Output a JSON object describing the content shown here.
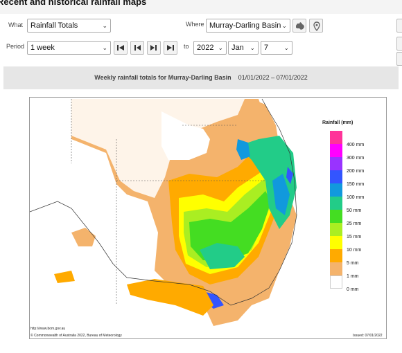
{
  "page_title": "Recent and historical rainfall maps",
  "controls": {
    "what_label": "What",
    "what_value": "Rainfall Totals",
    "where_label": "Where",
    "where_value": "Murray-Darling Basin",
    "period_label": "Period",
    "period_value": "1 week",
    "to_label": "to",
    "year_value": "2022",
    "month_value": "Jan",
    "day_value": "7"
  },
  "map_title": {
    "heading": "Weekly rainfall totals for Murray-Darling Basin",
    "dates": "01/01/2022 – 07/01/2022"
  },
  "legend": {
    "title": "Rainfall (mm)",
    "items": [
      {
        "label": "400 mm",
        "color": "#ff3399"
      },
      {
        "label": "300 mm",
        "color": "#ff00ff"
      },
      {
        "label": "200 mm",
        "color": "#9933ff"
      },
      {
        "label": "150 mm",
        "color": "#3355ff"
      },
      {
        "label": "100 mm",
        "color": "#1199dd"
      },
      {
        "label": "50 mm",
        "color": "#22cc88"
      },
      {
        "label": "25 mm",
        "color": "#44dd22"
      },
      {
        "label": "15 mm",
        "color": "#aaee22"
      },
      {
        "label": "10 mm",
        "color": "#ffff00"
      },
      {
        "label": "5 mm",
        "color": "#ffaa00"
      },
      {
        "label": "1 mm",
        "color": "#f4b36c"
      },
      {
        "label": "0 mm",
        "color": "#ffffff"
      }
    ]
  },
  "footer": {
    "url": "http://www.bom.gov.au",
    "copyright": "© Commonwealth of Australia 2022, Bureau of Meteorology",
    "issued": "Issued: 07/01/2022"
  },
  "icons": [
    "australia-map-icon",
    "location-pin-icon",
    "first-icon",
    "previous-icon",
    "next-icon",
    "last-icon",
    "chevron-down-icon"
  ]
}
